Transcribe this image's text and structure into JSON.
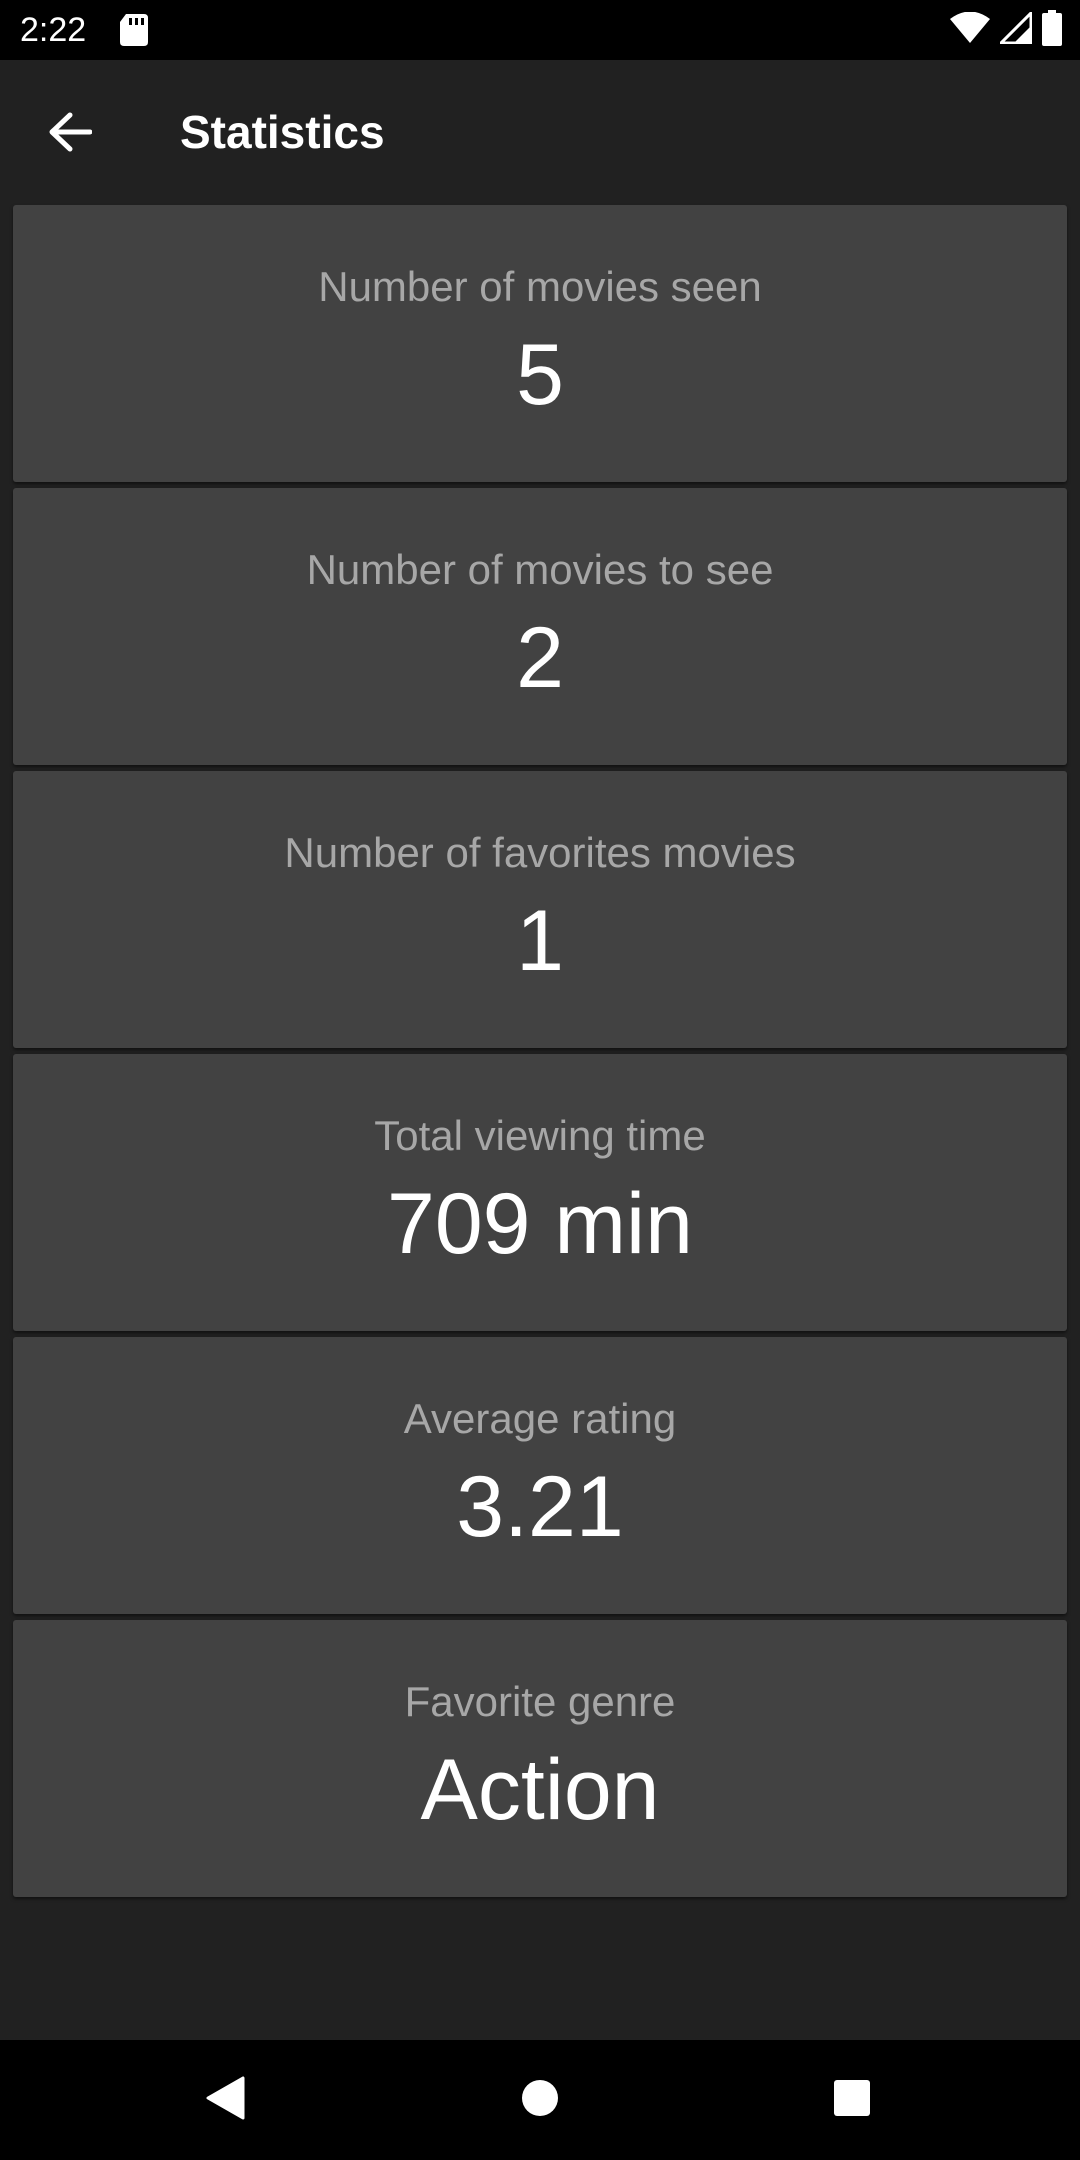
{
  "status_bar": {
    "time": "2:22",
    "icons": [
      "sd-card-icon",
      "wifi-icon",
      "cellular-signal-icon",
      "battery-icon"
    ]
  },
  "app_bar": {
    "title": "Statistics",
    "back_icon": "arrow-back-icon"
  },
  "stats": [
    {
      "label": "Number of movies seen",
      "value": "5"
    },
    {
      "label": "Number of movies to see",
      "value": "2"
    },
    {
      "label": "Number of favorites movies",
      "value": "1"
    },
    {
      "label": "Total viewing time",
      "value": "709 min"
    },
    {
      "label": "Average rating",
      "value": "3.21"
    },
    {
      "label": "Favorite genre",
      "value": "Action"
    }
  ],
  "nav_bar": {
    "icons": [
      "nav-back-icon",
      "nav-home-icon",
      "nav-recents-icon"
    ]
  },
  "colors": {
    "background": "#212121",
    "card": "#424242",
    "label": "#a7a7a7",
    "value": "#ffffff",
    "system_bars": "#000000"
  }
}
